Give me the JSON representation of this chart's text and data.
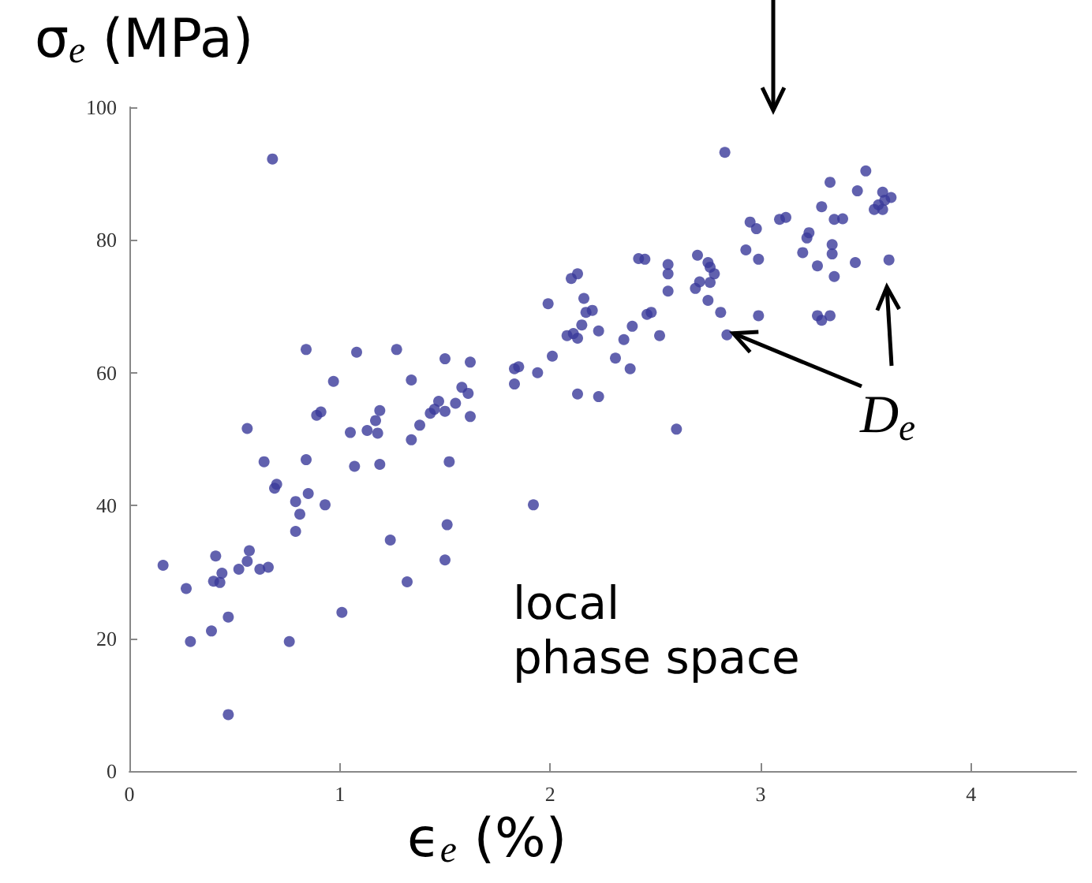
{
  "chart_data": {
    "type": "scatter",
    "xlabel": "ϵ$_{e}$ (%)",
    "ylabel": "σ$_{e}$ (MPa)",
    "annotations": [
      {
        "text": "D$_{e}$",
        "x": 2.84,
        "y": 65.7
      },
      "local\nphase space"
    ],
    "xlim": [
      0,
      4.5
    ],
    "xticks": [
      0,
      1,
      2,
      3,
      4
    ],
    "ylim": [
      0,
      100
    ],
    "yticks": [
      0,
      20,
      40,
      60,
      80,
      100
    ],
    "grid": false,
    "marker": "circle",
    "series": [
      {
        "color": "#3a3a9a",
        "x": [
          0.68,
          0.16,
          0.27,
          0.29,
          0.39,
          0.47,
          0.47,
          0.41,
          0.4,
          0.43,
          0.44,
          0.52,
          0.56,
          0.57,
          0.56,
          0.62,
          0.66,
          0.64,
          0.69,
          0.7,
          0.76,
          0.79,
          0.79,
          0.81,
          0.84,
          0.84,
          0.85,
          0.89,
          0.91,
          0.93,
          0.97,
          1.01,
          1.05,
          1.07,
          1.08,
          1.13,
          1.17,
          1.18,
          1.19,
          1.19,
          1.24,
          1.27,
          1.32,
          1.34,
          1.34,
          1.38,
          1.43,
          1.45,
          1.47,
          1.5,
          1.5,
          1.51,
          1.5,
          1.52,
          1.55,
          1.58,
          1.61,
          1.62,
          1.62,
          1.83,
          1.85,
          1.83,
          1.94,
          2.01,
          2.13,
          2.23,
          1.92,
          1.99,
          2.1,
          2.13,
          2.16,
          2.17,
          2.2,
          2.15,
          2.08,
          2.11,
          2.13,
          2.23,
          2.31,
          2.35,
          2.38,
          2.39,
          2.46,
          2.48,
          2.42,
          2.45,
          2.52,
          2.56,
          2.56,
          2.56,
          2.6,
          2.7,
          2.69,
          2.71,
          2.75,
          2.76,
          2.78,
          2.76,
          2.75,
          2.81,
          2.84,
          2.83,
          2.93,
          2.95,
          2.98,
          2.99,
          2.99,
          3.09,
          3.12,
          3.2,
          3.22,
          3.23,
          3.27,
          3.29,
          3.27,
          3.29,
          3.33,
          3.33,
          3.34,
          3.34,
          3.35,
          3.39,
          3.35,
          3.45,
          3.46,
          3.5,
          3.54,
          3.56,
          3.58,
          3.59,
          3.62,
          3.58,
          3.61
        ],
        "values": [
          92.2,
          31.0,
          27.5,
          19.5,
          21.1,
          23.2,
          8.5,
          32.4,
          28.6,
          28.4,
          29.8,
          30.4,
          31.6,
          33.2,
          51.6,
          30.4,
          30.7,
          46.6,
          42.6,
          43.2,
          19.5,
          36.1,
          40.6,
          38.7,
          63.5,
          46.9,
          41.8,
          53.6,
          54.1,
          40.1,
          58.7,
          23.9,
          51.0,
          45.9,
          63.1,
          51.3,
          52.8,
          50.9,
          54.3,
          46.2,
          34.8,
          63.5,
          28.5,
          58.9,
          49.9,
          52.1,
          53.9,
          54.5,
          55.7,
          62.1,
          54.2,
          37.1,
          31.8,
          46.6,
          55.4,
          57.8,
          56.9,
          61.6,
          53.4,
          60.6,
          60.9,
          58.3,
          60.0,
          62.5,
          56.8,
          56.4,
          40.1,
          70.4,
          74.2,
          74.9,
          71.2,
          69.1,
          69.4,
          67.2,
          65.6,
          65.9,
          65.2,
          66.3,
          62.2,
          65.0,
          60.6,
          67.0,
          68.8,
          69.1,
          77.2,
          77.1,
          65.6,
          76.3,
          74.9,
          72.3,
          51.5,
          77.7,
          72.7,
          73.7,
          76.6,
          75.9,
          74.9,
          73.6,
          70.9,
          69.1,
          65.7,
          93.2,
          78.5,
          82.7,
          81.7,
          77.1,
          68.6,
          83.1,
          83.4,
          78.1,
          80.3,
          81.1,
          76.1,
          85.0,
          68.6,
          67.9,
          68.6,
          88.7,
          79.3,
          77.9,
          83.1,
          83.2,
          74.5,
          76.6,
          87.4,
          90.4,
          84.6,
          85.3,
          87.2,
          86.0,
          86.4,
          84.6,
          77.0
        ]
      }
    ]
  }
}
